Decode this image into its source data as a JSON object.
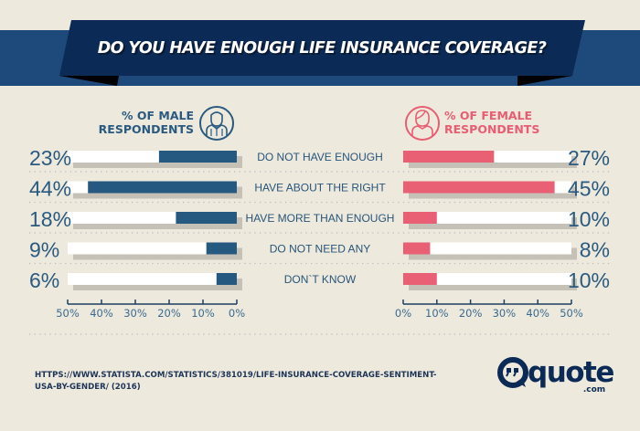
{
  "header": {
    "title": "DO YOU HAVE ENOUGH LIFE INSURANCE COVERAGE?"
  },
  "legend": {
    "male_line1": "% OF MALE",
    "male_line2": "RESPONDENTS",
    "male_icon": "male-person-icon",
    "female_line1": "% OF FEMALE",
    "female_line2": "RESPONDENTS",
    "female_icon": "female-person-icon"
  },
  "colors": {
    "background": "#ede9dd",
    "band": "#1d4a7a",
    "ribbon": "#0b2a55",
    "male": "#25597f",
    "female": "#e95f74",
    "track": "#ffffff",
    "shadow": "#c5c1b7",
    "text": "#2a5a80"
  },
  "chart_data": {
    "type": "bar",
    "orientation": "horizontal-butterfly",
    "title": "DO YOU HAVE ENOUGH LIFE INSURANCE COVERAGE?",
    "categories": [
      "DO NOT HAVE ENOUGH",
      "HAVE ABOUT THE RIGHT",
      "HAVE MORE THAN ENOUGH",
      "DO NOT NEED ANY",
      "DON`T KNOW"
    ],
    "series": [
      {
        "name": "% OF MALE RESPONDENTS",
        "values": [
          23,
          44,
          18,
          9,
          6
        ],
        "labels": [
          "23%",
          "44%",
          "18%",
          "9%",
          "6%"
        ]
      },
      {
        "name": "% OF FEMALE RESPONDENTS",
        "values": [
          27,
          45,
          10,
          8,
          10
        ],
        "labels": [
          "27%",
          "45%",
          "10%",
          "8%",
          "10%"
        ]
      }
    ],
    "xlim": [
      0,
      50
    ],
    "male_ticks": [
      "50%",
      "40%",
      "30%",
      "20%",
      "10%",
      "0%"
    ],
    "female_ticks": [
      "0%",
      "10%",
      "20%",
      "30%",
      "40%",
      "50%"
    ],
    "xlabel": "",
    "ylabel": "",
    "legend": "top",
    "grid": false
  },
  "footer": {
    "source_line1": "HTTPS://WWW.STATISTA.COM/STATISTICS/381019/LIFE-INSURANCE-COVERAGE-SENTIMENT-",
    "source_line2": "USA-BY-GENDER/ (2016)",
    "logo_main": "quote",
    "logo_sub": ".com",
    "logo_icon": "quote-bubble-icon"
  }
}
